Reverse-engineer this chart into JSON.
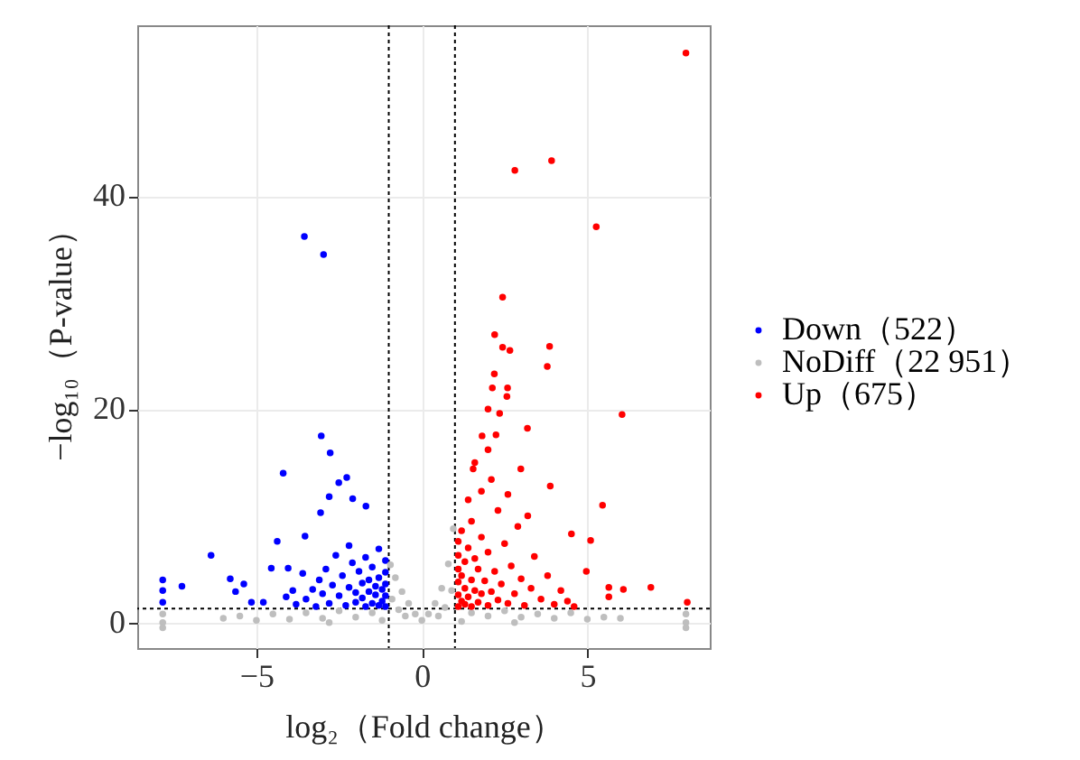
{
  "chart_data": {
    "type": "scatter",
    "xlabel": "log₂（Fold change）",
    "ylabel": "−log₁₀（P-value）",
    "xlim": [
      -8.6,
      8.7
    ],
    "xticks": [
      {
        "value": -5,
        "label": "−5"
      },
      0,
      5
    ],
    "ylim": [
      -2.4,
      56
    ],
    "yticks": [
      0,
      20,
      40
    ],
    "grid": true,
    "legend": "right",
    "marker": "circle",
    "ref_lines": [
      {
        "axis": "x",
        "value": -1,
        "color": "#000000",
        "line_style": "dotted"
      },
      {
        "axis": "x",
        "value": 1,
        "color": "#000000",
        "line_style": "dotted"
      },
      {
        "axis": "y",
        "value": 1.3,
        "color": "#000000",
        "line_style": "dotted"
      }
    ],
    "series": [
      {
        "name": "Down（522）",
        "color": "#0000ff",
        "x": [
          -1.1,
          -1.1,
          -1.1,
          -1.1,
          -1.1,
          -1.2,
          -1.2,
          -1.3,
          -1.3,
          -1.3,
          -1.4,
          -1.4,
          -1.5,
          -1.5,
          -1.6,
          -1.6,
          -1.7,
          -1.7,
          -1.8,
          -1.8,
          -1.9,
          -2.0,
          -2.0,
          -2.1,
          -2.2,
          -2.2,
          -2.3,
          -2.4,
          -2.5,
          -2.6,
          -2.7,
          -2.8,
          -2.9,
          -3.0,
          -3.1,
          -3.2,
          -3.3,
          -3.5,
          -3.6,
          -3.8,
          -3.9,
          -4.1,
          -3.55,
          -2.97,
          -3.04,
          -2.77,
          -4.19,
          -2.51,
          -2.27,
          -2.8,
          -2.09,
          -3.06,
          -1.69,
          -4.37,
          -3.53,
          -6.37,
          -7.25,
          -7.83,
          -7.83,
          -7.83,
          -5.79,
          -5.63,
          -5.38,
          -5.15,
          -4.79,
          -4.55,
          -4.04
        ],
        "values": [
          1.5,
          2.5,
          3.6,
          4.7,
          5.8,
          2.0,
          3.1,
          1.6,
          4.2,
          6.9,
          2.6,
          3.4,
          1.8,
          5.2,
          2.9,
          4.0,
          1.5,
          6.1,
          2.3,
          3.7,
          4.8,
          1.9,
          2.8,
          5.6,
          3.3,
          7.2,
          1.6,
          4.4,
          2.5,
          6.3,
          3.5,
          1.8,
          5.0,
          2.7,
          4.0,
          1.5,
          3.1,
          2.2,
          4.6,
          1.7,
          3.0,
          2.4,
          36.2,
          34.5,
          17.5,
          15.9,
          14.0,
          13.1,
          13.6,
          11.8,
          11.6,
          10.3,
          10.9,
          7.6,
          8.1,
          6.3,
          3.4,
          1.9,
          3.0,
          4.0,
          4.1,
          2.9,
          3.6,
          1.9,
          1.9,
          5.1,
          5.1
        ]
      },
      {
        "name": "NoDiff（22 951）",
        "color": "#bebebe",
        "x": [
          0,
          -0.2,
          0.2,
          -0.4,
          0.4,
          -0.6,
          0.6,
          -0.8,
          0.8,
          -0.95,
          0.95,
          -0.7,
          0.7,
          -0.9,
          0.9,
          -0.5,
          0.5,
          -1.5,
          1.5,
          -2.0,
          2.0,
          -2.5,
          2.5,
          -3.0,
          3.0,
          -3.5,
          3.5,
          -4.0,
          4.0,
          -4.5,
          4.5,
          -5.0,
          5.0,
          -5.5,
          5.5,
          -1.2,
          1.2,
          -7.83,
          -7.83,
          -7.83,
          7.98,
          7.98,
          7.98,
          -2.8,
          2.8,
          -6.0,
          6.0
        ],
        "values": [
          0.2,
          0.8,
          0.8,
          1.8,
          1.8,
          2.9,
          3.2,
          4.2,
          5.5,
          5.4,
          8.8,
          1.2,
          1.4,
          2.2,
          3.0,
          0.6,
          0.6,
          0.9,
          0.9,
          0.5,
          0.6,
          1.1,
          1.1,
          0.4,
          0.5,
          0.9,
          0.8,
          0.3,
          0.4,
          0.8,
          0.9,
          0.2,
          0.3,
          0.6,
          0.5,
          0.2,
          0.1,
          0.0,
          -0.5,
          0.8,
          0.0,
          -0.5,
          0.8,
          0.0,
          0.0,
          0.4,
          0.4
        ]
      },
      {
        "name": "Up（675）",
        "color": "#ff0000",
        "x": [
          1.1,
          1.1,
          1.1,
          1.1,
          1.1,
          1.1,
          1.2,
          1.2,
          1.2,
          1.3,
          1.3,
          1.3,
          1.4,
          1.4,
          1.5,
          1.5,
          1.5,
          1.6,
          1.6,
          1.7,
          1.7,
          1.8,
          1.8,
          1.9,
          2.0,
          2.0,
          2.1,
          2.2,
          2.3,
          2.3,
          2.4,
          2.5,
          2.6,
          2.7,
          2.8,
          2.9,
          3.0,
          3.1,
          3.3,
          3.4,
          3.6,
          3.8,
          4.0,
          4.2,
          4.4,
          4.6,
          1.4,
          1.8,
          2.1,
          1.6,
          2.6,
          3.2,
          2.0,
          7.98,
          2.81,
          3.92,
          5.27,
          2.44,
          2.2,
          2.44,
          2.66,
          3.86,
          3.79,
          2.19,
          2.13,
          2.59,
          6.05,
          2.57,
          2.0,
          2.35,
          3.19,
          1.82,
          2.24,
          1.55,
          2.99,
          3.88,
          5.46,
          5.1,
          4.52,
          6.92,
          6.09,
          5.65,
          4.97,
          5.65,
          8.02
        ],
        "values": [
          1.5,
          2.6,
          3.8,
          5.0,
          6.3,
          7.6,
          2.0,
          4.4,
          8.6,
          1.7,
          3.2,
          5.7,
          2.4,
          7.0,
          1.5,
          4.0,
          9.5,
          3.0,
          6.0,
          1.9,
          5.0,
          2.7,
          8.0,
          3.9,
          1.6,
          6.6,
          2.9,
          4.8,
          2.1,
          10.5,
          3.6,
          7.4,
          1.8,
          5.3,
          2.7,
          9.0,
          4.1,
          1.6,
          3.2,
          6.2,
          2.2,
          4.4,
          1.7,
          3.0,
          2.0,
          1.5,
          11.5,
          12.3,
          13.4,
          15.0,
          12.0,
          10.0,
          16.2,
          53.4,
          42.4,
          43.3,
          37.1,
          30.5,
          27.0,
          25.8,
          25.5,
          25.9,
          24.0,
          23.3,
          22.0,
          22.0,
          19.5,
          21.2,
          20.0,
          19.6,
          18.2,
          17.5,
          17.6,
          14.4,
          14.4,
          12.8,
          11.0,
          7.7,
          8.3,
          3.3,
          3.1,
          2.4,
          4.8,
          3.3,
          1.9
        ]
      }
    ]
  }
}
